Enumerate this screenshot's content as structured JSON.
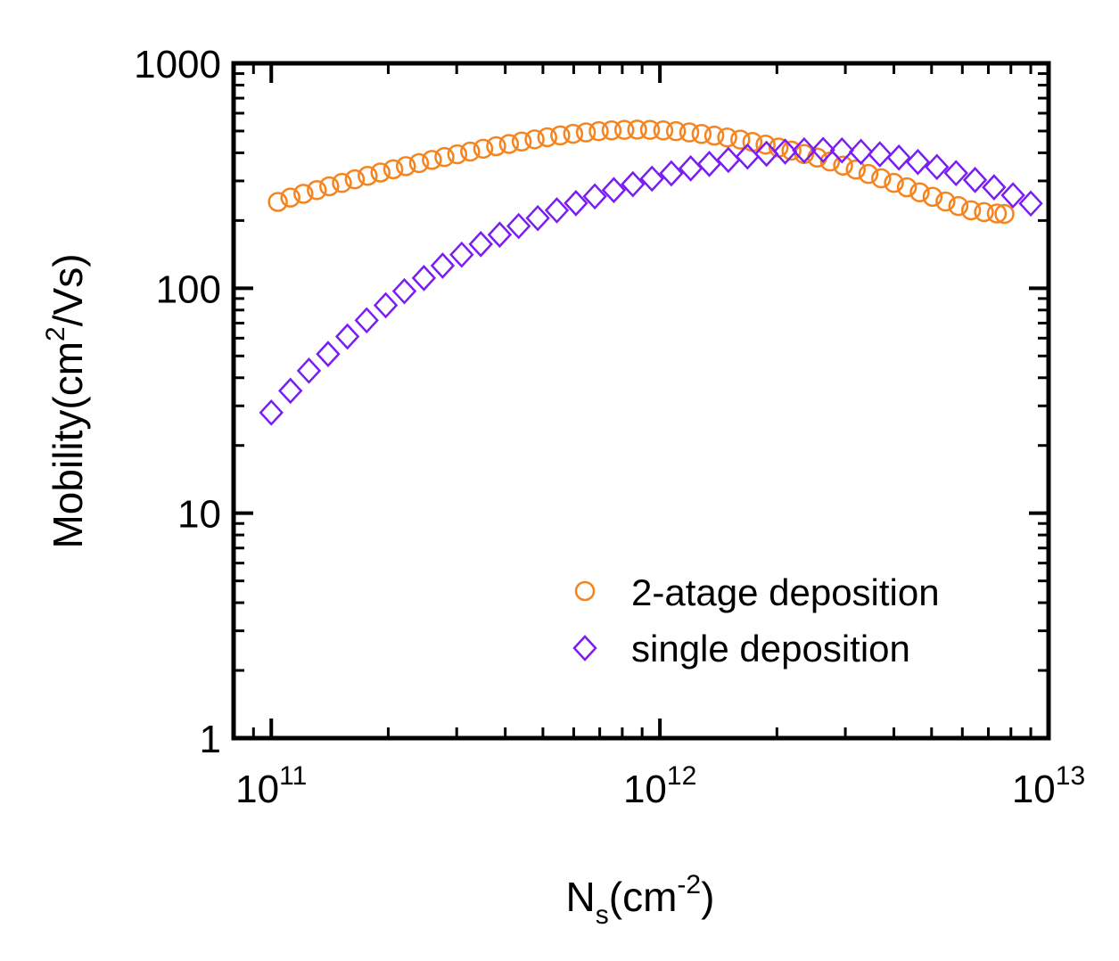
{
  "chart_data": {
    "type": "scatter",
    "title": "",
    "xlabel": {
      "main": "N",
      "sub": "s",
      "rest": "(cm",
      "sup": "-2",
      "close": ")"
    },
    "ylabel": {
      "main": "Mobility(cm",
      "sup": "2",
      "rest": "/Vs)"
    },
    "x_scale": "log",
    "y_scale": "log",
    "xlim": [
      80000000000.0,
      10000000000000.0
    ],
    "ylim": [
      1,
      1000
    ],
    "x_ticks": [
      {
        "value": 100000000000.0,
        "base": "10",
        "exp": "11"
      },
      {
        "value": 1000000000000.0,
        "base": "10",
        "exp": "12"
      },
      {
        "value": 10000000000000.0,
        "base": "10",
        "exp": "13"
      }
    ],
    "y_ticks": [
      {
        "value": 1,
        "label": "1"
      },
      {
        "value": 10,
        "label": "10"
      },
      {
        "value": 100,
        "label": "100"
      },
      {
        "value": 1000,
        "label": "1000"
      }
    ],
    "grid": false,
    "legend": "bottom-right",
    "series": [
      {
        "name": "2-atage deposition",
        "marker": "circle",
        "color": "#f5841f",
        "x": [
          104000000000.0,
          112000000000.0,
          121000000000.0,
          131000000000.0,
          141000000000.0,
          152000000000.0,
          164000000000.0,
          177000000000.0,
          191000000000.0,
          206000000000.0,
          222000000000.0,
          240000000000.0,
          259000000000.0,
          279000000000.0,
          301000000000.0,
          325000000000.0,
          351000000000.0,
          379000000000.0,
          409000000000.0,
          441000000000.0,
          476000000000.0,
          513000000000.0,
          554000000000.0,
          598000000000.0,
          645000000000.0,
          696000000000.0,
          751000000000.0,
          810000000000.0,
          874000000000.0,
          943000000000.0,
          1020000000000.0,
          1100000000000.0,
          1190000000000.0,
          1280000000000.0,
          1380000000000.0,
          1490000000000.0,
          1610000000000.0,
          1730000000000.0,
          1870000000000.0,
          2020000000000.0,
          2180000000000.0,
          2350000000000.0,
          2540000000000.0,
          2740000000000.0,
          2960000000000.0,
          3190000000000.0,
          3440000000000.0,
          3710000000000.0,
          4000000000000.0,
          4320000000000.0,
          4660000000000.0,
          5030000000000.0,
          5430000000000.0,
          5860000000000.0,
          6320000000000.0,
          6820000000000.0,
          7360000000000.0,
          7700000000000.0
        ],
        "y": [
          242,
          253,
          263,
          273,
          284,
          294,
          305,
          316,
          327,
          338,
          349,
          360,
          372,
          383,
          394,
          405,
          417,
          428,
          438,
          449,
          459,
          469,
          478,
          486,
          493,
          499,
          503,
          506,
          507,
          506,
          503,
          499,
          493,
          485,
          477,
          468,
          458,
          447,
          435,
          422,
          409,
          395,
          381,
          366,
          351,
          337,
          322,
          308,
          294,
          281,
          267,
          255,
          243,
          232,
          222,
          218,
          215,
          214
        ]
      },
      {
        "name": "single deposition",
        "marker": "diamond",
        "color": "#7a1df5",
        "x": [
          100000000000.0,
          112000000000.0,
          125000000000.0,
          140000000000.0,
          157000000000.0,
          176000000000.0,
          197000000000.0,
          220000000000.0,
          247000000000.0,
          276000000000.0,
          309000000000.0,
          346000000000.0,
          387000000000.0,
          433000000000.0,
          485000000000.0,
          543000000000.0,
          608000000000.0,
          680000000000.0,
          761000000000.0,
          852000000000.0,
          954000000000.0,
          1070000000000.0,
          1200000000000.0,
          1340000000000.0,
          1500000000000.0,
          1680000000000.0,
          1880000000000.0,
          2100000000000.0,
          2350000000000.0,
          2630000000000.0,
          2940000000000.0,
          3290000000000.0,
          3680000000000.0,
          4120000000000.0,
          4610000000000.0,
          5160000000000.0,
          5780000000000.0,
          6470000000000.0,
          7240000000000.0,
          8100000000000.0,
          9000000000000.0
        ],
        "y": [
          28,
          35,
          43,
          51,
          61,
          72,
          84,
          97,
          111,
          126,
          141,
          157,
          173,
          189,
          205,
          222,
          239,
          256,
          273,
          290,
          307,
          324,
          341,
          357,
          372,
          385,
          396,
          405,
          410,
          412,
          410,
          404,
          394,
          381,
          364,
          346,
          325,
          303,
          281,
          259,
          238
        ]
      }
    ]
  }
}
